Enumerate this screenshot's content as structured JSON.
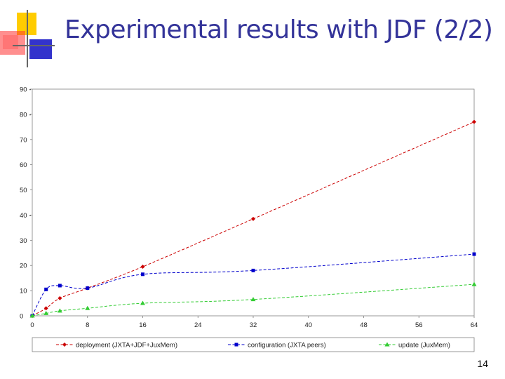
{
  "slide": {
    "title": "Experimental results with JDF (2/2)",
    "page_number": "14"
  },
  "colors": {
    "title": "#333399",
    "deco_yellow": "#ffcc00",
    "deco_red": "#ff3333",
    "deco_blue": "#3333cc",
    "deco_line": "#666666"
  },
  "chart_data": {
    "type": "line",
    "xlabel": "",
    "ylabel": "",
    "xlim": [
      0,
      64
    ],
    "ylim": [
      0,
      90
    ],
    "x_ticks": [
      "0",
      "8",
      "16",
      "24",
      "32",
      "40",
      "48",
      "56",
      "64"
    ],
    "y_ticks": [
      "0",
      "10",
      "20",
      "30",
      "40 -",
      "50",
      "60",
      "70",
      "80 -",
      "90 -"
    ],
    "legend_position": "bottom",
    "grid": false,
    "series": [
      {
        "name": "deployment (JXTA+JDF+JuxMem)",
        "color": "#cc0000",
        "marker": "diamond",
        "x": [
          0,
          2,
          4,
          8,
          16,
          32,
          64
        ],
        "y": [
          0,
          3,
          7,
          11,
          19.5,
          38.5,
          77
        ]
      },
      {
        "name": "configuration (JXTA peers)",
        "color": "#0000cc",
        "marker": "square",
        "x": [
          0,
          2,
          4,
          8,
          16,
          32,
          64
        ],
        "y": [
          0,
          10.5,
          12,
          11,
          16.5,
          18,
          24.5
        ]
      },
      {
        "name": "update (JuxMem)",
        "color": "#33cc33",
        "marker": "triangle",
        "x": [
          0,
          2,
          4,
          8,
          16,
          32,
          64
        ],
        "y": [
          0,
          1,
          2,
          3,
          5,
          6.5,
          12.5
        ]
      }
    ]
  }
}
